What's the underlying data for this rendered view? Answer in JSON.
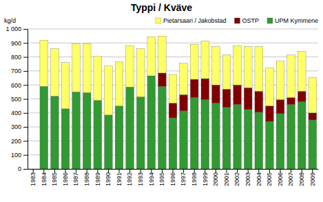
{
  "chart_data": {
    "type": "bar",
    "stacked": true,
    "title": "Typpi / Kväve",
    "y_label": "kg/d",
    "categories": [
      "1983",
      "1984",
      "1985",
      "1986",
      "1987",
      "1988",
      "1989",
      "1990",
      "1991",
      "1992",
      "1993",
      "1994",
      "1995",
      "1996",
      "1997",
      "1998",
      "1999",
      "2000",
      "2001",
      "2002",
      "2003",
      "2004",
      "2005",
      "2006",
      "2007",
      "2008",
      "2009"
    ],
    "series": [
      {
        "name": "UPM Kymmene",
        "color": "#339933",
        "values": [
          null,
          590,
          520,
          430,
          550,
          545,
          490,
          385,
          450,
          585,
          515,
          665,
          590,
          365,
          415,
          510,
          495,
          470,
          440,
          460,
          425,
          405,
          340,
          395,
          460,
          480,
          350
        ]
      },
      {
        "name": "OSTP",
        "color": "#800000",
        "values": [
          null,
          null,
          null,
          null,
          null,
          null,
          null,
          null,
          null,
          null,
          null,
          null,
          95,
          105,
          115,
          130,
          150,
          130,
          130,
          140,
          155,
          150,
          110,
          100,
          50,
          75,
          50
        ]
      },
      {
        "name": "Pietarsaari / Jakobstad",
        "color": "#ffff66",
        "values": [
          null,
          330,
          340,
          330,
          345,
          350,
          315,
          350,
          315,
          295,
          345,
          280,
          265,
          205,
          225,
          250,
          270,
          275,
          245,
          280,
          295,
          320,
          270,
          275,
          305,
          285,
          255
        ]
      }
    ],
    "ylim": [
      0,
      1000
    ],
    "yticks": [
      0,
      100,
      200,
      300,
      400,
      500,
      600,
      700,
      800,
      900,
      {
        "value": 1000,
        "label": "1 000"
      }
    ],
    "grid": true,
    "legend": "top"
  }
}
